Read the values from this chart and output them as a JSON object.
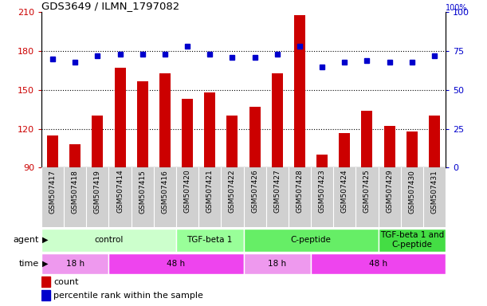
{
  "title": "GDS3649 / ILMN_1797082",
  "samples": [
    "GSM507417",
    "GSM507418",
    "GSM507419",
    "GSM507414",
    "GSM507415",
    "GSM507416",
    "GSM507420",
    "GSM507421",
    "GSM507422",
    "GSM507426",
    "GSM507427",
    "GSM507428",
    "GSM507423",
    "GSM507424",
    "GSM507425",
    "GSM507429",
    "GSM507430",
    "GSM507431"
  ],
  "counts": [
    115,
    108,
    130,
    167,
    157,
    163,
    143,
    148,
    130,
    137,
    163,
    208,
    100,
    117,
    134,
    122,
    118,
    130
  ],
  "percentile_ranks": [
    70,
    68,
    72,
    73,
    73,
    73,
    78,
    73,
    71,
    71,
    73,
    78,
    65,
    68,
    69,
    68,
    68,
    72
  ],
  "ylim_left": [
    90,
    210
  ],
  "ylim_right": [
    0,
    100
  ],
  "yticks_left": [
    90,
    120,
    150,
    180,
    210
  ],
  "yticks_right": [
    0,
    25,
    50,
    75,
    100
  ],
  "bar_color": "#CC0000",
  "dot_color": "#0000CC",
  "agent_groups": [
    {
      "label": "control",
      "start": 0,
      "end": 6,
      "color": "#CCFFCC"
    },
    {
      "label": "TGF-beta 1",
      "start": 6,
      "end": 9,
      "color": "#99FF99"
    },
    {
      "label": "C-peptide",
      "start": 9,
      "end": 15,
      "color": "#66EE66"
    },
    {
      "label": "TGF-beta 1 and\nC-peptide",
      "start": 15,
      "end": 18,
      "color": "#44DD44"
    }
  ],
  "time_groups": [
    {
      "label": "18 h",
      "start": 0,
      "end": 3,
      "color": "#EE99EE"
    },
    {
      "label": "48 h",
      "start": 3,
      "end": 9,
      "color": "#EE44EE"
    },
    {
      "label": "18 h",
      "start": 9,
      "end": 12,
      "color": "#EE99EE"
    },
    {
      "label": "48 h",
      "start": 12,
      "end": 18,
      "color": "#EE44EE"
    }
  ],
  "legend_count_color": "#CC0000",
  "legend_pct_color": "#0000CC",
  "bg_color": "#FFFFFF",
  "xtick_bg": "#D0D0D0",
  "grid_color": "#000000",
  "spine_color": "#000000"
}
